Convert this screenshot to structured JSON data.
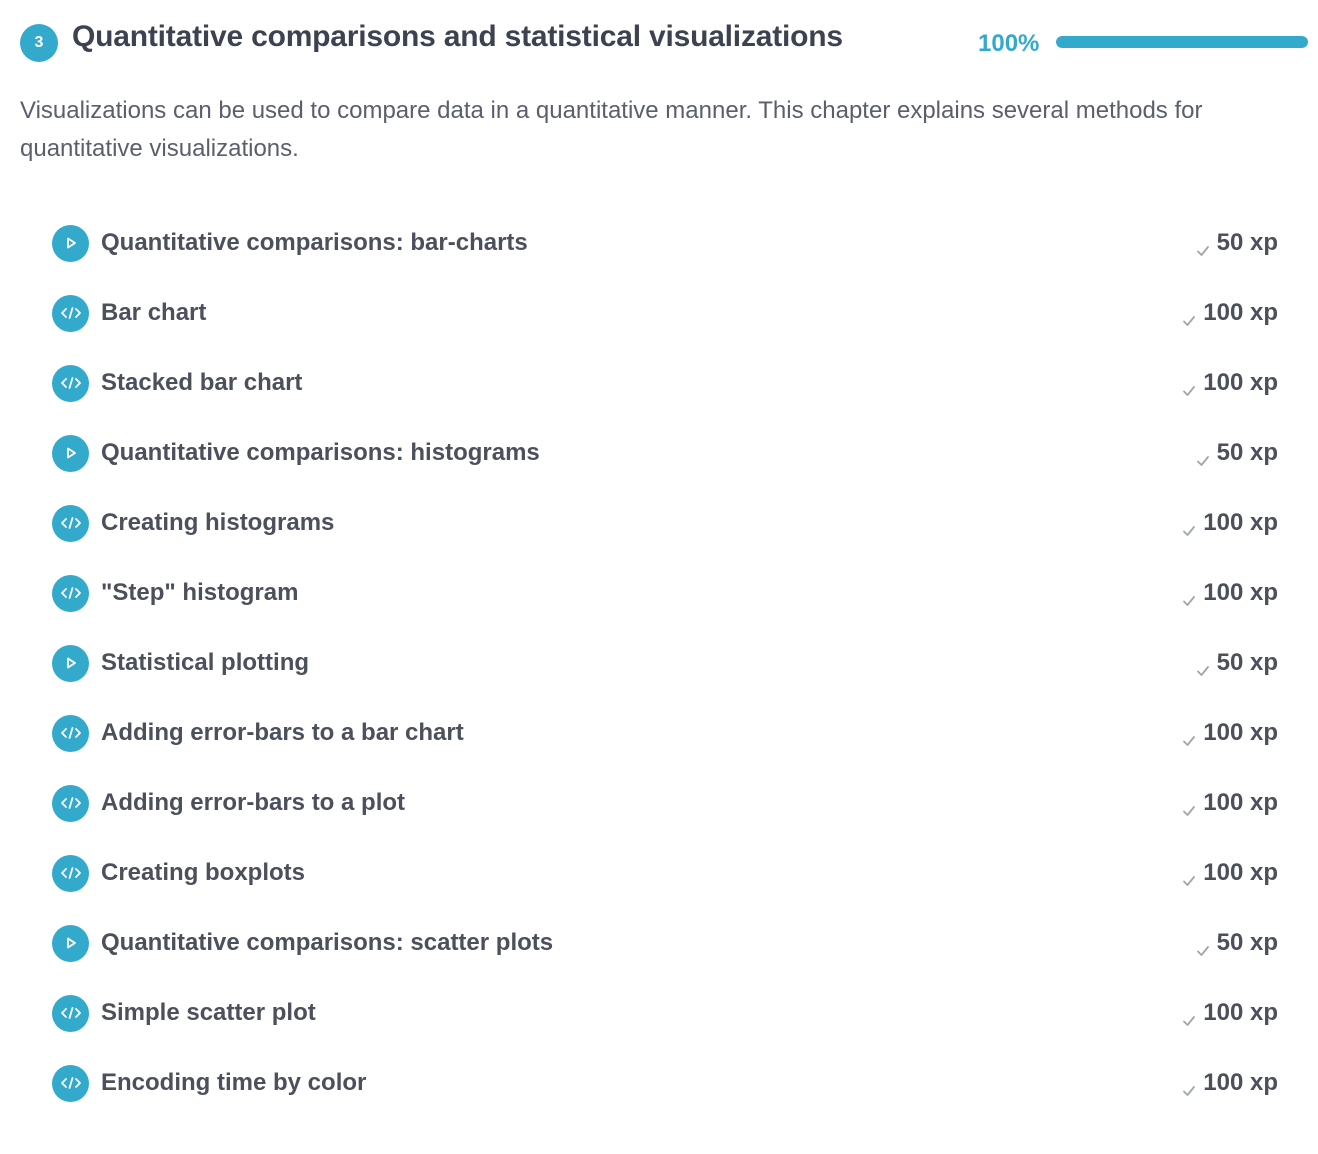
{
  "chapter": {
    "number": "3",
    "title": "Quantitative comparisons and statistical visualizations",
    "progress_label": "100%",
    "progress_value": 1.0,
    "description": "Visualizations can be used to compare data in a quantitative manner. This chapter explains several methods for quantitative visualizations."
  },
  "colors": {
    "accent": "#33aacc",
    "text": "#4b505c",
    "check": "#a0a6ad"
  },
  "exercises": [
    {
      "type": "video",
      "icon": "play-icon",
      "title": "Quantitative comparisons: bar-charts",
      "xp": "50 xp"
    },
    {
      "type": "code",
      "icon": "code-icon",
      "title": "Bar chart",
      "xp": "100 xp"
    },
    {
      "type": "code",
      "icon": "code-icon",
      "title": "Stacked bar chart",
      "xp": "100 xp"
    },
    {
      "type": "video",
      "icon": "play-icon",
      "title": "Quantitative comparisons: histograms",
      "xp": "50 xp"
    },
    {
      "type": "code",
      "icon": "code-icon",
      "title": "Creating histograms",
      "xp": "100 xp"
    },
    {
      "type": "code",
      "icon": "code-icon",
      "title": "\"Step\" histogram",
      "xp": "100 xp"
    },
    {
      "type": "video",
      "icon": "play-icon",
      "title": "Statistical plotting",
      "xp": "50 xp"
    },
    {
      "type": "code",
      "icon": "code-icon",
      "title": "Adding error-bars to a bar chart",
      "xp": "100 xp"
    },
    {
      "type": "code",
      "icon": "code-icon",
      "title": "Adding error-bars to a plot",
      "xp": "100 xp"
    },
    {
      "type": "code",
      "icon": "code-icon",
      "title": "Creating boxplots",
      "xp": "100 xp"
    },
    {
      "type": "video",
      "icon": "play-icon",
      "title": "Quantitative comparisons: scatter plots",
      "xp": "50 xp"
    },
    {
      "type": "code",
      "icon": "code-icon",
      "title": "Simple scatter plot",
      "xp": "100 xp"
    },
    {
      "type": "code",
      "icon": "code-icon",
      "title": "Encoding time by color",
      "xp": "100 xp"
    }
  ]
}
